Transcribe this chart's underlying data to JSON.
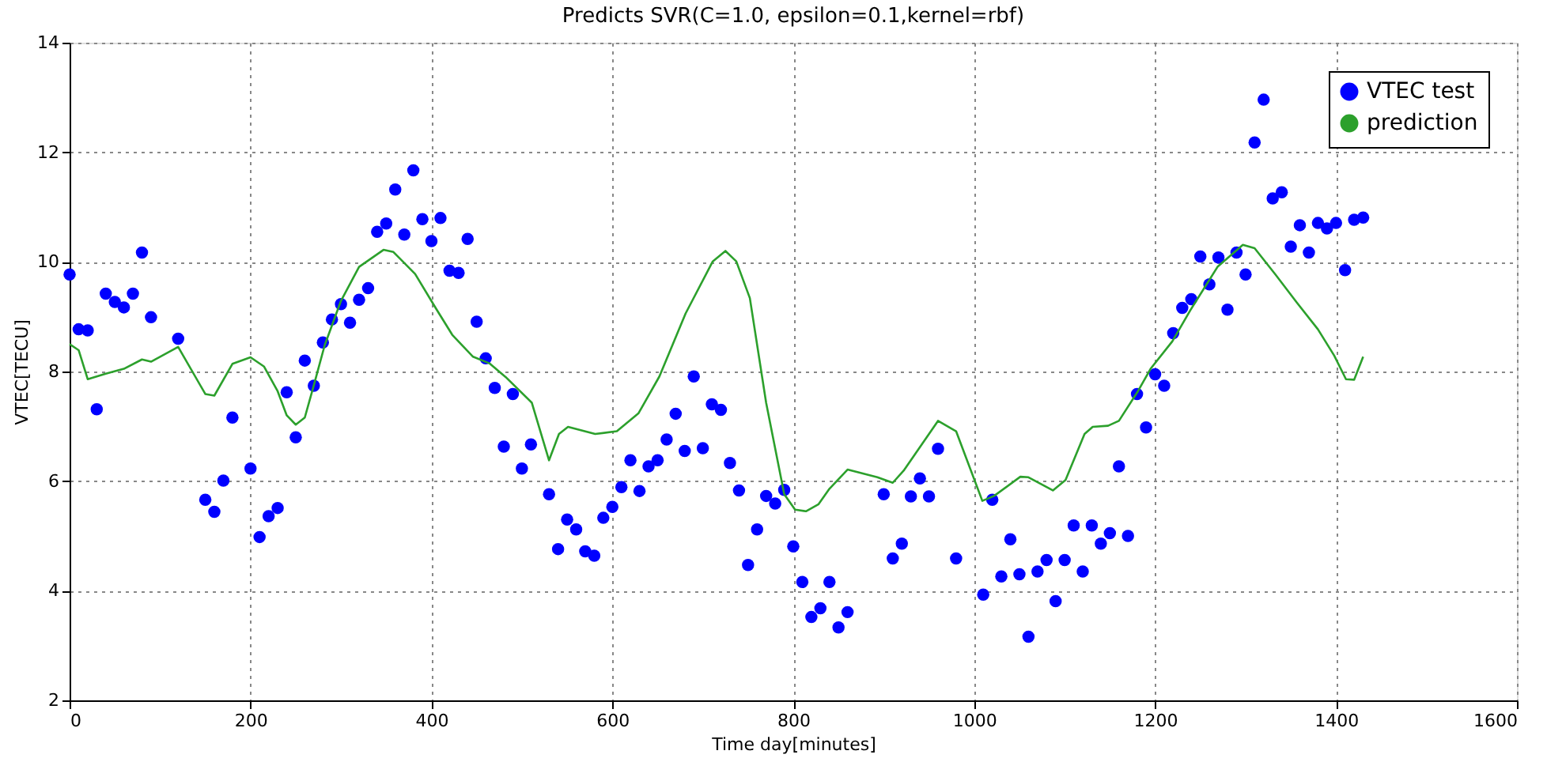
{
  "chart_data": {
    "type": "scatter",
    "title": "Predicts SVR(C=1.0, epsilon=0.1,kernel=rbf)",
    "xlabel": "Time day[minutes]",
    "ylabel": "VTEC[TECU]",
    "xlim": [
      0,
      1600
    ],
    "xticks": [
      0,
      200,
      400,
      600,
      800,
      1000,
      1200,
      1400,
      1600
    ],
    "ylim": [
      2,
      14
    ],
    "yticks": [
      2,
      4,
      6,
      8,
      10,
      12,
      14
    ],
    "grid": true,
    "legend": "top right",
    "series": [
      {
        "name": "VTEC test",
        "marker": "circle",
        "color": "#0000ff",
        "x": [
          0,
          10,
          20,
          30,
          40,
          50,
          60,
          70,
          80,
          90,
          120,
          150,
          160,
          170,
          180,
          200,
          210,
          220,
          230,
          240,
          250,
          260,
          270,
          280,
          290,
          300,
          310,
          320,
          330,
          340,
          350,
          360,
          370,
          380,
          390,
          400,
          410,
          420,
          430,
          440,
          450,
          460,
          470,
          480,
          490,
          500,
          510,
          530,
          540,
          550,
          560,
          570,
          580,
          590,
          600,
          610,
          620,
          630,
          640,
          650,
          660,
          670,
          680,
          690,
          700,
          710,
          720,
          730,
          740,
          750,
          760,
          770,
          780,
          790,
          800,
          810,
          820,
          830,
          840,
          850,
          860,
          900,
          910,
          920,
          930,
          940,
          950,
          960,
          980,
          1010,
          1020,
          1030,
          1040,
          1050,
          1060,
          1070,
          1080,
          1090,
          1100,
          1110,
          1120,
          1130,
          1140,
          1150,
          1160,
          1170,
          1180,
          1190,
          1200,
          1210,
          1220,
          1230,
          1240,
          1250,
          1260,
          1270,
          1280,
          1290,
          1300,
          1310,
          1320,
          1330,
          1340,
          1350,
          1360,
          1370,
          1380,
          1390,
          1400,
          1410,
          1420,
          1430
        ],
        "values": [
          9.77,
          8.77,
          8.75,
          7.31,
          9.42,
          9.27,
          9.17,
          9.42,
          10.17,
          8.99,
          8.6,
          5.66,
          5.44,
          6.01,
          7.16,
          6.23,
          4.98,
          5.36,
          5.51,
          7.62,
          6.8,
          8.2,
          7.74,
          8.53,
          8.95,
          9.23,
          8.89,
          9.31,
          9.52,
          10.55,
          10.7,
          11.32,
          10.5,
          11.67,
          10.78,
          10.38,
          10.8,
          9.84,
          9.8,
          10.42,
          8.91,
          8.24,
          7.7,
          6.63,
          7.59,
          6.23,
          6.67,
          5.76,
          4.76,
          5.3,
          5.12,
          4.72,
          4.64,
          5.33,
          5.53,
          5.89,
          6.38,
          5.82,
          6.27,
          6.38,
          6.76,
          7.23,
          6.55,
          7.91,
          6.6,
          7.4,
          7.3,
          6.33,
          5.83,
          4.47,
          5.12,
          5.73,
          5.59,
          5.84,
          4.81,
          4.16,
          3.52,
          3.68,
          4.16,
          3.33,
          3.61,
          5.76,
          4.59,
          4.86,
          5.72,
          6.05,
          5.72,
          6.59,
          4.59,
          3.93,
          5.66,
          4.26,
          4.94,
          4.3,
          3.16,
          4.35,
          4.56,
          3.81,
          4.56,
          5.19,
          4.35,
          5.19,
          4.86,
          5.05,
          6.27,
          5.0,
          7.59,
          6.98,
          7.95,
          7.74,
          8.7,
          9.16,
          9.32,
          10.1,
          9.59,
          10.08,
          9.13,
          10.17,
          9.77,
          12.18,
          12.96,
          11.16,
          11.27,
          10.28,
          10.67,
          10.17,
          10.71,
          10.61,
          10.71,
          9.85,
          10.77,
          10.81
        ]
      },
      {
        "name": "prediction",
        "type": "line",
        "marker": "none",
        "line_style": "solid",
        "color": "#2ca02c",
        "x": [
          0,
          10,
          20,
          40,
          60,
          80,
          90,
          120,
          150,
          160,
          180,
          200,
          215,
          230,
          240,
          250,
          260,
          270,
          282,
          300,
          320,
          347,
          358,
          382,
          405,
          423,
          446,
          464,
          482,
          511,
          530,
          541,
          551,
          581,
          605,
          629,
          652,
          681,
          711,
          725,
          737,
          752,
          770,
          790,
          802,
          814,
          828,
          840,
          860,
          893,
          910,
          922,
          960,
          980,
          1009,
          1022,
          1051,
          1060,
          1087,
          1101,
          1122,
          1131,
          1148,
          1160,
          1181,
          1195,
          1219,
          1239,
          1269,
          1297,
          1310,
          1333,
          1357,
          1380,
          1398,
          1411,
          1420,
          1430
        ],
        "values": [
          8.5,
          8.39,
          7.86,
          7.96,
          8.05,
          8.22,
          8.18,
          8.45,
          7.59,
          7.56,
          8.14,
          8.26,
          8.09,
          7.64,
          7.2,
          7.03,
          7.16,
          7.75,
          8.48,
          9.29,
          9.91,
          10.22,
          10.18,
          9.78,
          9.15,
          8.67,
          8.27,
          8.15,
          7.9,
          7.43,
          6.38,
          6.86,
          6.99,
          6.86,
          6.91,
          7.24,
          7.91,
          9.06,
          10.01,
          10.2,
          10.01,
          9.34,
          7.43,
          5.76,
          5.48,
          5.45,
          5.58,
          5.86,
          6.21,
          6.07,
          5.97,
          6.19,
          7.1,
          6.91,
          5.64,
          5.73,
          6.08,
          6.07,
          5.83,
          6.02,
          6.86,
          6.99,
          7.01,
          7.1,
          7.64,
          8.05,
          8.55,
          9.12,
          9.91,
          10.31,
          10.25,
          9.77,
          9.25,
          8.77,
          8.29,
          7.86,
          7.85,
          8.27
        ]
      }
    ]
  }
}
